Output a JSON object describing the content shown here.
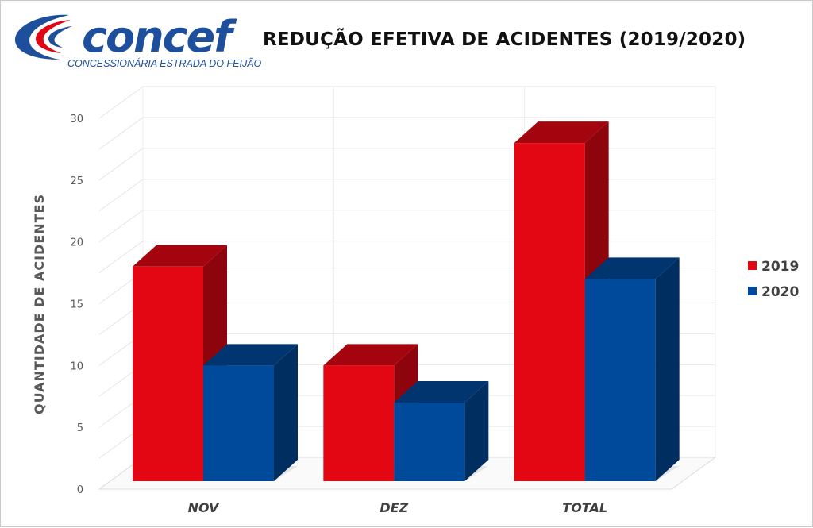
{
  "logo": {
    "name": "concef",
    "tagline": "CONCESSIONÁRIA ESTRADA DO FEIJÃO",
    "brand_color": "#1d4f9c",
    "accent_color": "#e10613"
  },
  "chart_data": {
    "type": "bar",
    "title": "REDUÇÃO EFETIVA DE ACIDENTES (2019/2020)",
    "xlabel": "",
    "ylabel": "QUANTIDADE DE ACIDENTES",
    "categories": [
      "NOV",
      "DEZ",
      "TOTAL"
    ],
    "series": [
      {
        "name": "2019",
        "values": [
          18,
          10,
          28
        ],
        "color": "#e30613"
      },
      {
        "name": "2020",
        "values": [
          10,
          7,
          17
        ],
        "color": "#004a9c"
      }
    ],
    "ylim": [
      0,
      30
    ],
    "yticks": [
      "0",
      "5",
      "10",
      "15",
      "20",
      "25",
      "30"
    ],
    "grid": true,
    "legend": "right",
    "style": "3d-column"
  }
}
